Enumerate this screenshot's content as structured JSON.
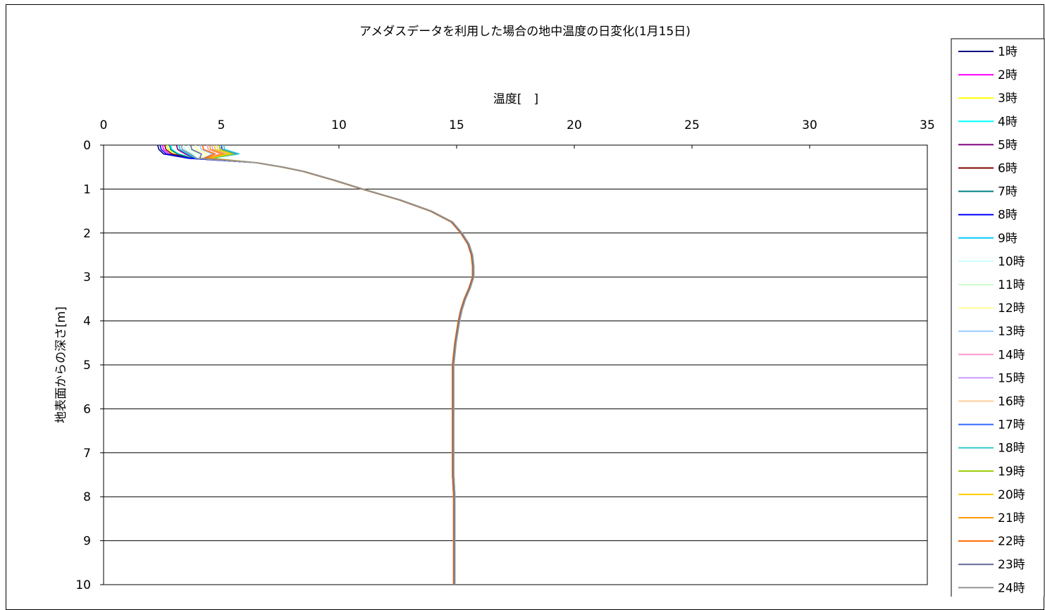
{
  "chart_data": {
    "type": "line",
    "title": "アメダスデータを利用した場合の地中温度の日変化(1月15日)",
    "xlabel": "温度[　]",
    "ylabel": "地表面からの深さ[m]",
    "xlim": [
      0,
      35
    ],
    "ylim": [
      0,
      10
    ],
    "y_inverted": true,
    "x_axis_position": "top",
    "x_ticks": [
      "0",
      "5",
      "10",
      "15",
      "20",
      "25",
      "30",
      "35"
    ],
    "y_ticks": [
      "0",
      "1",
      "2",
      "3",
      "4",
      "5",
      "6",
      "7",
      "8",
      "9",
      "10"
    ],
    "grid": "horizontal",
    "legend_position": "right",
    "depth": [
      0,
      0.1,
      0.2,
      0.3,
      0.4,
      0.5,
      0.6,
      0.8,
      1.0,
      1.25,
      1.5,
      1.75,
      2.0,
      2.25,
      2.5,
      2.75,
      3.0,
      3.25,
      3.5,
      3.75,
      4.0,
      4.5,
      5.0,
      5.5,
      6.0,
      6.5,
      7.0,
      7.5,
      8.0,
      8.5,
      9.0,
      9.5,
      10.0
    ],
    "deep_profile": [
      null,
      null,
      null,
      null,
      6.5,
      7.6,
      8.5,
      9.8,
      11.0,
      12.6,
      13.9,
      14.8,
      15.2,
      15.5,
      15.65,
      15.7,
      15.7,
      15.55,
      15.35,
      15.2,
      15.1,
      14.95,
      14.85,
      14.85,
      14.85,
      14.85,
      14.85,
      14.85,
      14.9,
      14.9,
      14.9,
      14.9,
      14.9
    ],
    "series": [
      {
        "name": "1時",
        "color": "#000080",
        "surface": 2.3
      },
      {
        "name": "2時",
        "color": "#FF00FF",
        "surface": 2.5
      },
      {
        "name": "3時",
        "color": "#FFFF00",
        "surface": 2.7
      },
      {
        "name": "4時",
        "color": "#00FFFF",
        "surface": 2.85
      },
      {
        "name": "5時",
        "color": "#800080",
        "surface": 3.1
      },
      {
        "name": "6時",
        "color": "#800000",
        "surface": 2.6
      },
      {
        "name": "7時",
        "color": "#008080",
        "surface": 2.8
      },
      {
        "name": "8時",
        "color": "#0000FF",
        "surface": 2.4
      },
      {
        "name": "9時",
        "color": "#00CCFF",
        "surface": 3.2
      },
      {
        "name": "10時",
        "color": "#CCFFFF",
        "surface": 3.4
      },
      {
        "name": "11時",
        "color": "#CCFFCC",
        "surface": 3.6
      },
      {
        "name": "12時",
        "color": "#FFFF99",
        "surface": 3.9
      },
      {
        "name": "13時",
        "color": "#99CCFF",
        "surface": 4.1
      },
      {
        "name": "14時",
        "color": "#FF99CC",
        "surface": 4.4
      },
      {
        "name": "15時",
        "color": "#CC99FF",
        "surface": 4.6
      },
      {
        "name": "16時",
        "color": "#FFCC99",
        "surface": 4.8
      },
      {
        "name": "17時",
        "color": "#3366FF",
        "surface": 5.0
      },
      {
        "name": "18時",
        "color": "#33CCCC",
        "surface": 5.1
      },
      {
        "name": "19時",
        "color": "#99CC00",
        "surface": 4.9
      },
      {
        "name": "20時",
        "color": "#FFCC00",
        "surface": 4.7
      },
      {
        "name": "21時",
        "color": "#FF9900",
        "surface": 4.5
      },
      {
        "name": "22時",
        "color": "#FF6600",
        "surface": 4.2
      },
      {
        "name": "23時",
        "color": "#666699",
        "surface": 3.7
      },
      {
        "name": "24時",
        "color": "#969696",
        "surface": 3.3
      }
    ]
  }
}
